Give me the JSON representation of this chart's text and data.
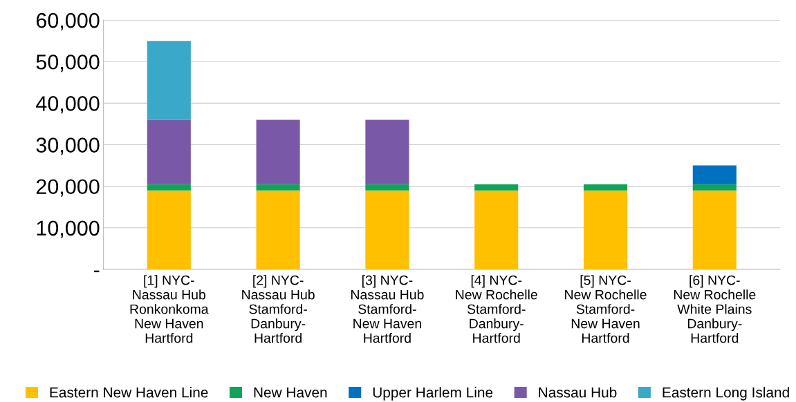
{
  "chart_data": {
    "type": "bar",
    "stacked": true,
    "categories": [
      "[1] NYC-\nNassau Hub\nRonkonkoma\nNew Haven\nHartford",
      "[2] NYC-\nNassau Hub\nStamford-\nDanbury-\nHartford",
      "[3] NYC-\nNassau Hub\nStamford-\nNew Haven\nHartford",
      "[4] NYC-\nNew Rochelle\nStamford-\nDanbury-\nHartford",
      "[5] NYC-\nNew Rochelle\nStamford-\nNew Haven\nHartford",
      "[6] NYC-\nNew Rochelle\nWhite Plains\nDanbury-\nHartford"
    ],
    "series": [
      {
        "name": "Eastern New Haven Line",
        "color": "#ffc000",
        "values": [
          19000,
          19000,
          19000,
          19000,
          19000,
          19000
        ]
      },
      {
        "name": "New Haven",
        "color": "#0ea55a",
        "values": [
          1500,
          1500,
          1500,
          1500,
          1500,
          1500
        ]
      },
      {
        "name": "Upper Harlem Line",
        "color": "#0070c0",
        "values": [
          null,
          null,
          null,
          null,
          null,
          4500
        ]
      },
      {
        "name": "Nassau Hub",
        "color": "#7a58a8",
        "values": [
          15500,
          15500,
          15500,
          null,
          null,
          null
        ]
      },
      {
        "name": "Eastern Long Island",
        "color": "#3aa8c8",
        "values": [
          19000,
          null,
          null,
          null,
          null,
          null
        ]
      }
    ],
    "ylim": [
      0,
      60000
    ],
    "yticks": [
      {
        "value": 0,
        "label": "-"
      },
      {
        "value": 10000,
        "label": "10,000"
      },
      {
        "value": 20000,
        "label": "20,000"
      },
      {
        "value": 30000,
        "label": "30,000"
      },
      {
        "value": 40000,
        "label": "40,000"
      },
      {
        "value": 50000,
        "label": "50,000"
      },
      {
        "value": 60000,
        "label": "60,000"
      }
    ],
    "grid": "y",
    "legend": "bottom"
  }
}
